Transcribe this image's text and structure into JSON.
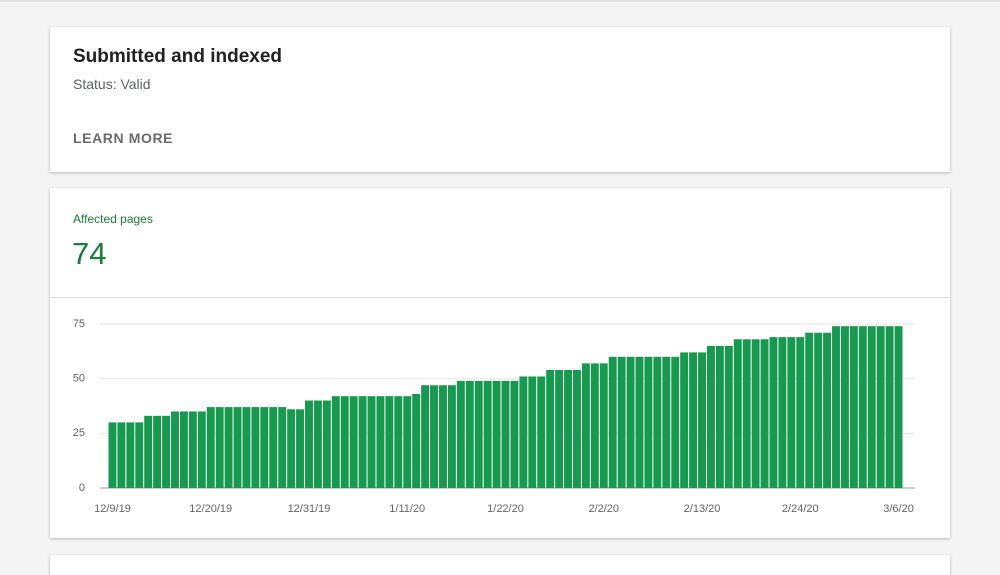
{
  "status_card": {
    "title": "Submitted and indexed",
    "status": "Status: Valid",
    "action": "LEARN MORE"
  },
  "metric": {
    "label": "Affected pages",
    "value": "74"
  },
  "chart_data": {
    "type": "bar",
    "color": "#179a50",
    "grid": true,
    "categories": [
      "12/9/19",
      null,
      null,
      null,
      null,
      null,
      null,
      null,
      null,
      null,
      null,
      "12/20/19",
      null,
      null,
      null,
      null,
      null,
      null,
      null,
      null,
      null,
      null,
      "12/31/19",
      null,
      null,
      null,
      null,
      null,
      null,
      null,
      null,
      null,
      null,
      "1/11/20",
      null,
      null,
      null,
      null,
      null,
      null,
      null,
      null,
      null,
      null,
      "1/22/20",
      null,
      null,
      null,
      null,
      null,
      null,
      null,
      null,
      null,
      null,
      "2/2/20",
      null,
      null,
      null,
      null,
      null,
      null,
      null,
      null,
      null,
      null,
      "2/13/20",
      null,
      null,
      null,
      null,
      null,
      null,
      null,
      null,
      null,
      null,
      "2/24/20",
      null,
      null,
      null,
      null,
      null,
      null,
      null,
      null,
      null,
      null,
      "3/6/20"
    ],
    "values": [
      30,
      30,
      30,
      30,
      33,
      33,
      33,
      35,
      35,
      35,
      35,
      37,
      37,
      37,
      37,
      37,
      37,
      37,
      37,
      37,
      36,
      36,
      40,
      40,
      40,
      42,
      42,
      42,
      42,
      42,
      42,
      42,
      42,
      42,
      43,
      47,
      47,
      47,
      47,
      49,
      49,
      49,
      49,
      49,
      49,
      49,
      51,
      51,
      51,
      54,
      54,
      54,
      54,
      57,
      57,
      57,
      60,
      60,
      60,
      60,
      60,
      60,
      60,
      60,
      62,
      62,
      62,
      65,
      65,
      65,
      68,
      68,
      68,
      68,
      69,
      69,
      69,
      69,
      71,
      71,
      71,
      74,
      74,
      74,
      74,
      74,
      74,
      74,
      74
    ],
    "ylim": [
      0,
      75
    ],
    "yticks": [
      0,
      25,
      50,
      75
    ]
  }
}
